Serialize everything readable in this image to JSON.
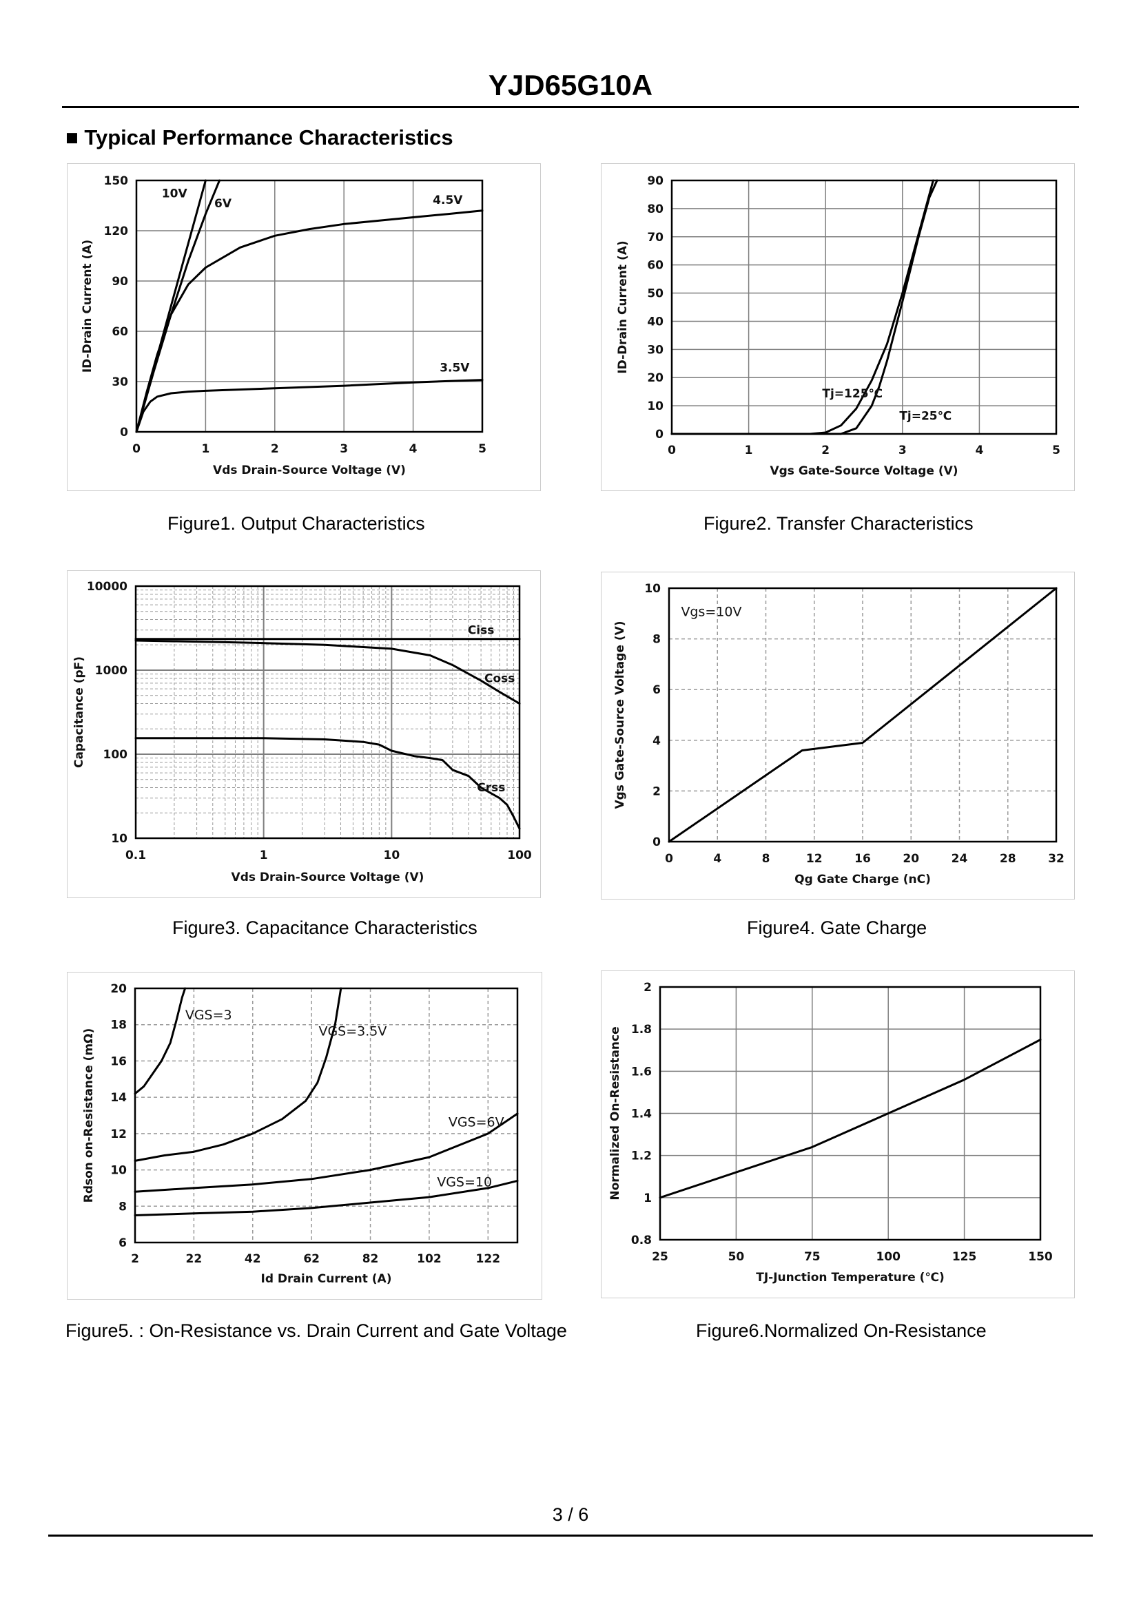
{
  "header": {
    "title": "YJD65G10A"
  },
  "section": {
    "bullet": "■",
    "heading": "Typical Performance Characteristics"
  },
  "footer": {
    "page": "3 / 6"
  },
  "figures": [
    {
      "caption": "Figure1.  Output Characteristics"
    },
    {
      "caption": "Figure2.  Transfer Characteristics"
    },
    {
      "caption": "Figure3.  Capacitance Characteristics"
    },
    {
      "caption": "Figure4. Gate Charge"
    },
    {
      "caption": "Figure5. : On-Resistance vs. Drain Current and Gate Voltage"
    },
    {
      "caption": "Figure6.Normalized On-Resistance"
    }
  ],
  "chart_data": [
    {
      "type": "line",
      "title": "Output Characteristics",
      "xlabel": "Vds Drain-Source Voltage (V)",
      "ylabel": "ID-Drain Current (A)",
      "xlim": [
        0,
        5
      ],
      "ylim": [
        0,
        150
      ],
      "xticks": [
        "0",
        "1",
        "2",
        "3",
        "4",
        "5"
      ],
      "yticks": [
        "0",
        "30",
        "60",
        "90",
        "120",
        "150"
      ],
      "grid": true,
      "series": [
        {
          "name": "10V",
          "x": [
            0,
            0.3,
            0.6,
            0.9,
            1.0
          ],
          "y": [
            0,
            45,
            90,
            135,
            150
          ]
        },
        {
          "name": "6V",
          "x": [
            0,
            0.25,
            0.5,
            0.75,
            1.0,
            1.15,
            1.2
          ],
          "y": [
            0,
            36,
            70,
            102,
            130,
            145,
            150
          ]
        },
        {
          "name": "4.5V",
          "x": [
            0,
            0.15,
            0.3,
            0.5,
            0.75,
            1.0,
            1.5,
            2.0,
            2.5,
            3.0,
            3.5,
            4.0,
            4.5,
            5.0
          ],
          "y": [
            0,
            24,
            46,
            70,
            88,
            98,
            110,
            117,
            121,
            124,
            126,
            128,
            130,
            132
          ]
        },
        {
          "name": "3.5V",
          "x": [
            0,
            0.1,
            0.2,
            0.3,
            0.5,
            0.75,
            1.0,
            2.0,
            3.0,
            4.0,
            5.0
          ],
          "y": [
            0,
            12,
            18,
            21,
            23,
            24,
            24.5,
            26,
            27.5,
            29.5,
            31
          ]
        }
      ]
    },
    {
      "type": "line",
      "title": "Transfer Characteristics",
      "xlabel": "Vgs Gate-Source Voltage (V)",
      "ylabel": "ID-Drain Current (A)",
      "xlim": [
        0,
        5
      ],
      "ylim": [
        0,
        90
      ],
      "xticks": [
        "0",
        "1",
        "2",
        "3",
        "4",
        "5"
      ],
      "yticks": [
        "0",
        "10",
        "20",
        "30",
        "40",
        "50",
        "60",
        "70",
        "80",
        "90"
      ],
      "grid": true,
      "annotations": [
        "Tj=125℃",
        "Tj=25℃"
      ],
      "series": [
        {
          "name": "Tj=125℃",
          "x": [
            0,
            1.8,
            2.0,
            2.2,
            2.4,
            2.6,
            2.8,
            3.0,
            3.2,
            3.4
          ],
          "y": [
            0,
            0,
            0.5,
            3,
            9,
            19,
            32,
            50,
            70,
            90
          ]
        },
        {
          "name": "Tj=25℃",
          "x": [
            0,
            2.2,
            2.4,
            2.6,
            2.7,
            2.8,
            3.0,
            3.2,
            3.35,
            3.45
          ],
          "y": [
            0,
            0,
            2,
            10,
            17,
            26,
            47,
            69,
            84,
            90
          ]
        }
      ]
    },
    {
      "type": "line",
      "title": "Capacitance Characteristics",
      "xlabel": "Vds Drain-Source Voltage (V)",
      "ylabel": "Capacitance (pF)",
      "xscale": "log",
      "yscale": "log",
      "xlim": [
        0.1,
        100
      ],
      "ylim": [
        10,
        10000
      ],
      "xticks": [
        "0.1",
        "1",
        "10",
        "100"
      ],
      "yticks": [
        "10",
        "100",
        "1000",
        "10000"
      ],
      "grid": true,
      "series": [
        {
          "name": "Ciss",
          "x": [
            0.1,
            1,
            10,
            100
          ],
          "y": [
            2350,
            2350,
            2350,
            2350
          ]
        },
        {
          "name": "Coss",
          "x": [
            0.1,
            0.5,
            1,
            3,
            10,
            20,
            30,
            50,
            70,
            100
          ],
          "y": [
            2250,
            2150,
            2100,
            2000,
            1800,
            1500,
            1150,
            750,
            550,
            400
          ]
        },
        {
          "name": "Crss",
          "x": [
            0.1,
            1,
            3,
            6,
            8,
            10,
            15,
            20,
            25,
            30,
            40,
            50,
            70,
            80,
            90,
            100
          ],
          "y": [
            155,
            155,
            150,
            140,
            130,
            110,
            95,
            90,
            85,
            65,
            55,
            40,
            30,
            25,
            18,
            13
          ]
        }
      ]
    },
    {
      "type": "line",
      "title": "Gate Charge",
      "xlabel": "Qg Gate Charge (nC)",
      "ylabel": "Vgs Gate-Source Voltage (V)",
      "xlim": [
        0,
        32
      ],
      "ylim": [
        0,
        10
      ],
      "xticks": [
        "0",
        "4",
        "8",
        "12",
        "16",
        "20",
        "24",
        "28",
        "32"
      ],
      "yticks": [
        "0",
        "2",
        "4",
        "6",
        "8",
        "10"
      ],
      "grid": true,
      "annotations": [
        "Vgs=10V"
      ],
      "series": [
        {
          "name": "Vgs=10V",
          "x": [
            0,
            11,
            16,
            32
          ],
          "y": [
            0,
            3.6,
            3.9,
            10
          ]
        }
      ]
    },
    {
      "type": "line",
      "title": "On-Resistance vs. Drain Current and Gate Voltage",
      "xlabel": "Id Drain Current (A)",
      "ylabel": "Rdson on-Resistance (mΩ)",
      "xlim": [
        2,
        132
      ],
      "ylim": [
        6,
        20
      ],
      "xticks": [
        "2",
        "22",
        "42",
        "62",
        "82",
        "102",
        "122"
      ],
      "yticks": [
        "6",
        "8",
        "10",
        "12",
        "14",
        "16",
        "18",
        "20"
      ],
      "grid": true,
      "series": [
        {
          "name": "VGS=3",
          "x": [
            2,
            5,
            8,
            11,
            14,
            16,
            18,
            19
          ],
          "y": [
            14.2,
            14.6,
            15.3,
            16.0,
            17.0,
            18.2,
            19.5,
            20
          ]
        },
        {
          "name": "VGS=3.5V",
          "x": [
            2,
            12,
            22,
            32,
            42,
            52,
            60,
            64,
            67,
            70,
            72
          ],
          "y": [
            10.5,
            10.8,
            11.0,
            11.4,
            12.0,
            12.8,
            13.8,
            14.8,
            16.2,
            18.0,
            20
          ]
        },
        {
          "name": "VGS=6V",
          "x": [
            2,
            22,
            42,
            62,
            82,
            102,
            122,
            132
          ],
          "y": [
            8.8,
            9.0,
            9.2,
            9.5,
            10.0,
            10.7,
            12.0,
            13.1
          ]
        },
        {
          "name": "VGS=10",
          "x": [
            2,
            22,
            42,
            62,
            82,
            102,
            122,
            132
          ],
          "y": [
            7.5,
            7.6,
            7.7,
            7.9,
            8.2,
            8.5,
            9.0,
            9.4
          ]
        }
      ]
    },
    {
      "type": "line",
      "title": "Normalized On-Resistance",
      "xlabel": "TJ-Junction Temperature (℃)",
      "ylabel": "Normalized On-Resistance",
      "xlim": [
        25,
        150
      ],
      "ylim": [
        0.8,
        2
      ],
      "xticks": [
        "25",
        "50",
        "75",
        "100",
        "125",
        "150"
      ],
      "yticks": [
        "0.8",
        "1",
        "1.2",
        "1.4",
        "1.6",
        "1.8",
        "2"
      ],
      "grid": true,
      "series": [
        {
          "name": "Normalized On-Resistance",
          "x": [
            25,
            50,
            75,
            100,
            125,
            150
          ],
          "y": [
            1.0,
            1.12,
            1.24,
            1.4,
            1.56,
            1.75
          ]
        }
      ]
    }
  ]
}
